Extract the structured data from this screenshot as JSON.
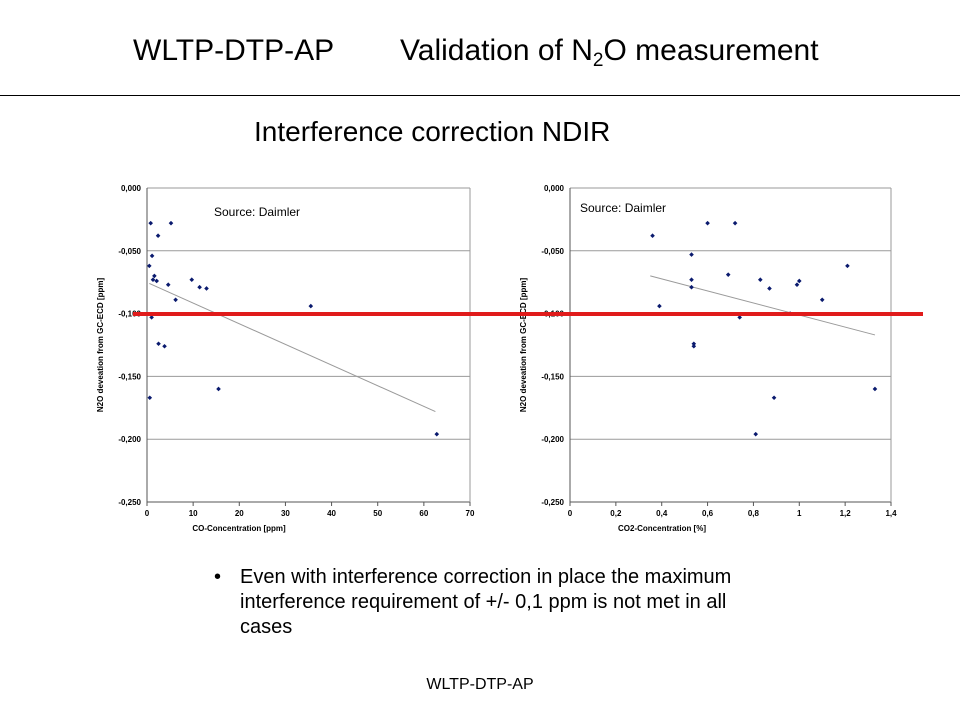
{
  "title": {
    "part1": "WLTP-DTP-AP",
    "part2_pre": "Validation of N",
    "part2_sub": "2",
    "part2_post": "O measurement"
  },
  "subtitle": "Interference correction NDIR",
  "bullet": "Even with interference correction in place the maximum interference requirement of +/- 0,1 ppm is not met in all cases",
  "bullet_marker": "•",
  "footer": "WLTP-DTP-AP",
  "colors": {
    "points": "#0a1a6e",
    "trendline": "#9a9a9a",
    "gridline": "#9a9a9a",
    "threshold": "#e01b1b"
  },
  "chart_data": [
    {
      "type": "scatter",
      "xlabel": "CO-Concentration [ppm]",
      "ylabel": "N2O deveation from GC-ECD [ppm]",
      "annotation": "Source: Daimler",
      "xlim": [
        0,
        70
      ],
      "ylim": [
        -0.25,
        0.0
      ],
      "x_ticks": [
        0,
        10,
        20,
        30,
        40,
        50,
        60,
        70
      ],
      "x_tick_labels": [
        "0",
        "10",
        "20",
        "30",
        "40",
        "50",
        "60",
        "70"
      ],
      "y_ticks": [
        0,
        -0.05,
        -0.1,
        -0.15,
        -0.2,
        -0.25
      ],
      "y_tick_labels": [
        "0,000",
        "-0,050",
        "-0,100",
        "-0,150",
        "-0,200",
        "-0,250"
      ],
      "grid": true,
      "points": [
        {
          "x": 0.8,
          "y": -0.028
        },
        {
          "x": 5.2,
          "y": -0.028
        },
        {
          "x": 2.4,
          "y": -0.038
        },
        {
          "x": 1.1,
          "y": -0.054
        },
        {
          "x": 0.5,
          "y": -0.062
        },
        {
          "x": 1.6,
          "y": -0.07
        },
        {
          "x": 1.3,
          "y": -0.073
        },
        {
          "x": 2.1,
          "y": -0.074
        },
        {
          "x": 9.7,
          "y": -0.073
        },
        {
          "x": 4.6,
          "y": -0.077
        },
        {
          "x": 11.4,
          "y": -0.079
        },
        {
          "x": 12.9,
          "y": -0.08
        },
        {
          "x": 6.2,
          "y": -0.089
        },
        {
          "x": 35.5,
          "y": -0.094
        },
        {
          "x": 1.0,
          "y": -0.103
        },
        {
          "x": 2.5,
          "y": -0.124
        },
        {
          "x": 3.8,
          "y": -0.126
        },
        {
          "x": 15.5,
          "y": -0.16
        },
        {
          "x": 0.6,
          "y": -0.167
        },
        {
          "x": 62.8,
          "y": -0.196
        }
      ],
      "trendline": [
        {
          "x": 0.5,
          "y": -0.076
        },
        {
          "x": 62.5,
          "y": -0.178
        }
      ]
    },
    {
      "type": "scatter",
      "xlabel": "CO2-Concentration [%]",
      "ylabel": "N2O deveation from GC-ECD [ppm]",
      "annotation": "Source: Daimler",
      "xlim": [
        0,
        1.4
      ],
      "ylim": [
        -0.25,
        0.0
      ],
      "x_ticks": [
        0,
        0.2,
        0.4,
        0.6,
        0.8,
        1.0,
        1.2,
        1.4
      ],
      "x_tick_labels": [
        "0",
        "0,2",
        "0,4",
        "0,6",
        "0,8",
        "1",
        "1,2",
        "1,4"
      ],
      "y_ticks": [
        0,
        -0.05,
        -0.1,
        -0.15,
        -0.2,
        -0.25
      ],
      "y_tick_labels": [
        "0,000",
        "-0,050",
        "-0,100",
        "-0,150",
        "-0,200",
        "-0,250"
      ],
      "grid": true,
      "points": [
        {
          "x": 0.36,
          "y": -0.038
        },
        {
          "x": 0.6,
          "y": -0.028
        },
        {
          "x": 0.72,
          "y": -0.028
        },
        {
          "x": 0.53,
          "y": -0.053
        },
        {
          "x": 1.21,
          "y": -0.062
        },
        {
          "x": 0.69,
          "y": -0.069
        },
        {
          "x": 0.53,
          "y": -0.073
        },
        {
          "x": 0.83,
          "y": -0.073
        },
        {
          "x": 1.0,
          "y": -0.074
        },
        {
          "x": 0.99,
          "y": -0.077
        },
        {
          "x": 0.53,
          "y": -0.079
        },
        {
          "x": 0.87,
          "y": -0.08
        },
        {
          "x": 1.1,
          "y": -0.089
        },
        {
          "x": 0.39,
          "y": -0.094
        },
        {
          "x": 0.96,
          "y": -0.1
        },
        {
          "x": 0.74,
          "y": -0.103
        },
        {
          "x": 0.54,
          "y": -0.124
        },
        {
          "x": 0.54,
          "y": -0.126
        },
        {
          "x": 1.33,
          "y": -0.16
        },
        {
          "x": 0.89,
          "y": -0.167
        },
        {
          "x": 0.81,
          "y": -0.196
        }
      ],
      "trendline": [
        {
          "x": 0.35,
          "y": -0.07
        },
        {
          "x": 1.33,
          "y": -0.117
        }
      ]
    }
  ]
}
